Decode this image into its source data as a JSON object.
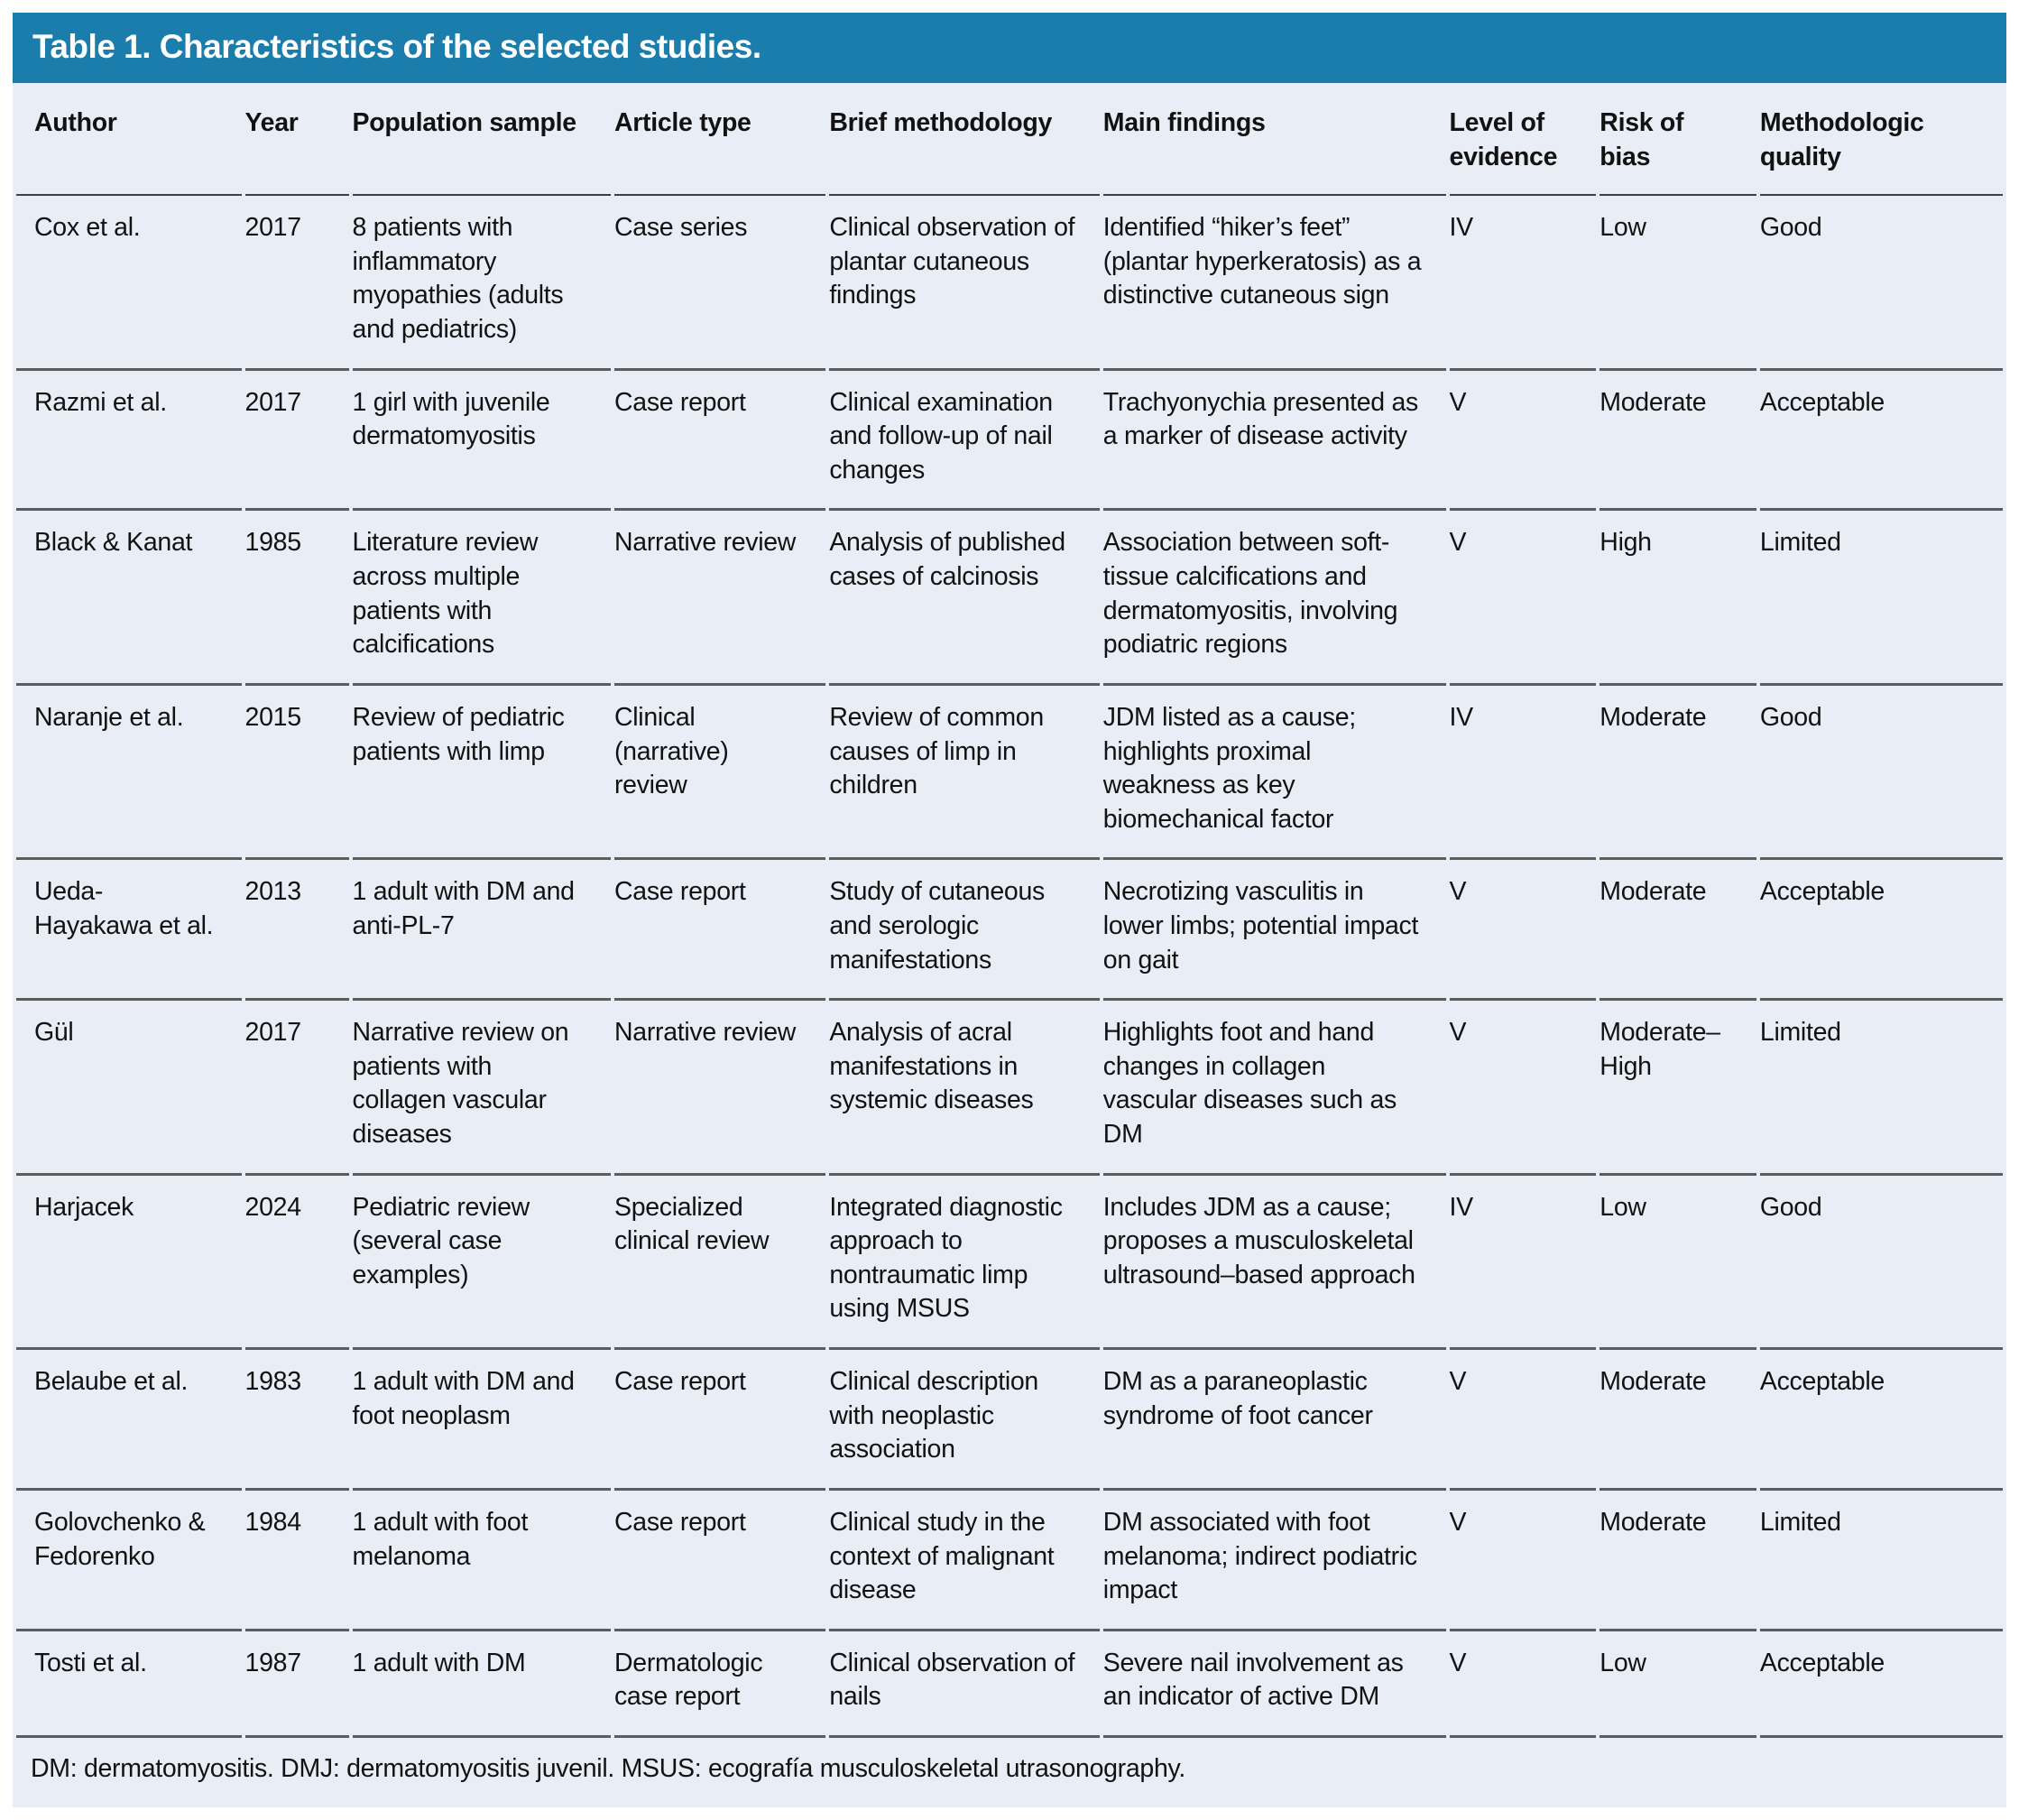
{
  "title": "Table 1. Characteristics of the selected studies.",
  "colors": {
    "header_bg": "#1b7dab",
    "panel_bg": "#e9eef6",
    "rule": "#5c5c5c",
    "text": "#121212"
  },
  "table": {
    "columns": [
      "Author",
      "Year",
      "Population sample",
      "Article type",
      "Brief methodology",
      "Main findings",
      "Level of evidence",
      "Risk of bias",
      "Methodologic quality"
    ],
    "row_keys": [
      "author",
      "year",
      "population",
      "article_type",
      "methodology",
      "findings",
      "evidence",
      "bias",
      "quality"
    ],
    "rows": [
      {
        "author": "Cox et al.",
        "year": "2017",
        "population": "8 patients with inflammatory myopathies (adults and pediatrics)",
        "article_type": "Case series",
        "methodology": "Clinical observation of plantar cutaneous findings",
        "findings": "Identified “hiker’s feet” (plantar hyperkeratosis) as a distinctive cutaneous sign",
        "evidence": "IV",
        "bias": "Low",
        "quality": "Good"
      },
      {
        "author": "Razmi et al.",
        "year": "2017",
        "population": "1 girl with juvenile dermatomyositis",
        "article_type": "Case report",
        "methodology": "Clinical examination and follow-up of nail changes",
        "findings": "Trachyonychia presented as a marker of disease activity",
        "evidence": "V",
        "bias": "Moderate",
        "quality": "Acceptable"
      },
      {
        "author": "Black & Kanat",
        "year": "1985",
        "population": "Literature review across multiple patients with calcifications",
        "article_type": "Narrative review",
        "methodology": "Analysis of published cases of calcinosis",
        "findings": "Association between soft-tissue calcifications and dermatomyositis, involving podiatric regions",
        "evidence": "V",
        "bias": "High",
        "quality": "Limited"
      },
      {
        "author": "Naranje et al.",
        "year": "2015",
        "population": "Review of pediatric patients with limp",
        "article_type": "Clinical (narrative) review",
        "methodology": "Review of common causes of limp in children",
        "findings": "JDM listed as a cause; highlights proximal weakness as key biomechanical factor",
        "evidence": "IV",
        "bias": "Moderate",
        "quality": "Good"
      },
      {
        "author": "Ueda-Hayakawa et al.",
        "year": "2013",
        "population": "1 adult with DM and anti-PL-7",
        "article_type": "Case report",
        "methodology": "Study of cutaneous and serologic manifestations",
        "findings": "Necrotizing vasculitis in lower limbs; potential impact on gait",
        "evidence": "V",
        "bias": "Moderate",
        "quality": "Acceptable"
      },
      {
        "author": "Gül",
        "year": "2017",
        "population": "Narrative review on patients with collagen vascular diseases",
        "article_type": "Narrative review",
        "methodology": "Analysis of acral manifestations in systemic diseases",
        "findings": "Highlights foot and hand changes in collagen vascular diseases such as DM",
        "evidence": "V",
        "bias": "Moderate–High",
        "quality": "Limited"
      },
      {
        "author": "Harjacek",
        "year": "2024",
        "population": "Pediatric review (several case examples)",
        "article_type": "Specialized clinical review",
        "methodology": "Integrated diagnostic approach to nontraumatic limp using MSUS",
        "findings": "Includes JDM as a cause; proposes a musculoskeletal ultrasound–based approach",
        "evidence": "IV",
        "bias": "Low",
        "quality": "Good"
      },
      {
        "author": "Belaube et al.",
        "year": "1983",
        "population": "1 adult with DM and foot neoplasm",
        "article_type": "Case report",
        "methodology": "Clinical description with neoplastic association",
        "findings": "DM as a paraneoplastic syndrome of foot cancer",
        "evidence": "V",
        "bias": "Moderate",
        "quality": "Acceptable"
      },
      {
        "author": "Golovchenko & Fedorenko",
        "year": "1984",
        "population": "1 adult with foot melanoma",
        "article_type": "Case report",
        "methodology": "Clinical study in the context of malignant disease",
        "findings": "DM associated with foot melanoma; indirect podiatric impact",
        "evidence": "V",
        "bias": "Moderate",
        "quality": "Limited"
      },
      {
        "author": "Tosti et al.",
        "year": "1987",
        "population": "1 adult with DM",
        "article_type": "Dermatologic case report",
        "methodology": "Clinical observation of nails",
        "findings": "Severe nail involvement as an indicator of active DM",
        "evidence": "V",
        "bias": "Low",
        "quality": "Acceptable"
      }
    ]
  },
  "footnote": "DM: dermatomyositis. DMJ: dermatomyositis juvenil. MSUS: ecografía musculoskeletal utrasonography."
}
